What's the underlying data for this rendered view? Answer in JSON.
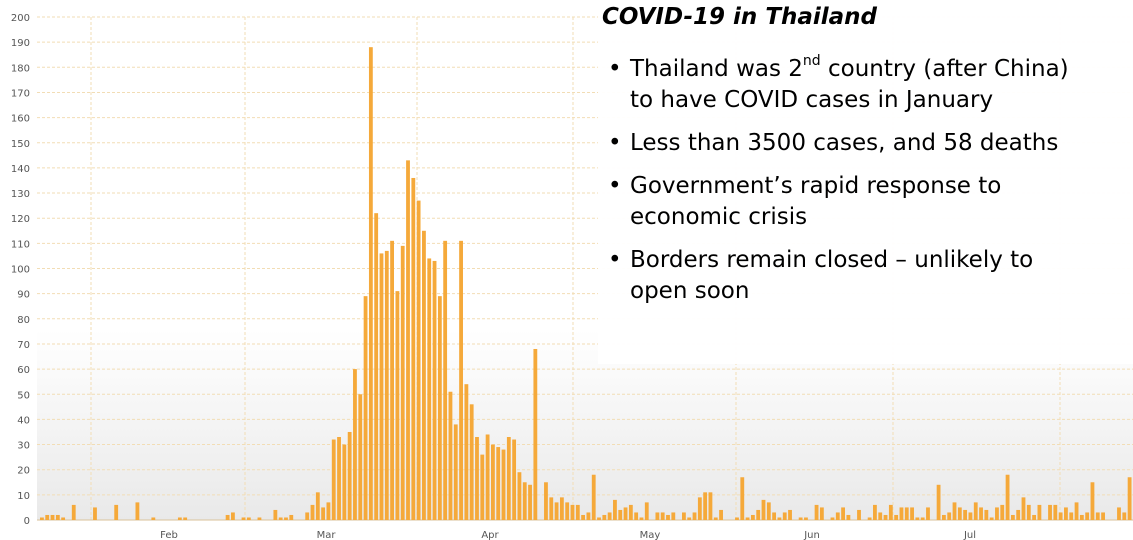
{
  "chart_data": {
    "type": "bar",
    "color": "#F5A93A",
    "grid_color": "#F2DDB5",
    "ylim": [
      0,
      200
    ],
    "yticks": [
      0,
      10,
      20,
      30,
      40,
      50,
      60,
      70,
      80,
      90,
      100,
      110,
      120,
      130,
      140,
      150,
      160,
      170,
      180,
      190,
      200
    ],
    "x_month_labels": [
      "Feb",
      "Mar",
      "Apr",
      "May",
      "Jun",
      "Jul"
    ],
    "values": [
      1,
      2,
      2,
      2,
      1,
      0,
      6,
      0,
      0,
      0,
      5,
      0,
      0,
      0,
      6,
      0,
      0,
      0,
      7,
      0,
      0,
      1,
      0,
      0,
      0,
      0,
      1,
      1,
      0,
      0,
      0,
      0,
      0,
      0,
      0,
      2,
      3,
      0,
      1,
      1,
      0,
      1,
      0,
      0,
      4,
      1,
      1,
      2,
      0,
      0,
      3,
      6,
      11,
      5,
      7,
      32,
      33,
      30,
      35,
      60,
      50,
      89,
      188,
      122,
      106,
      107,
      111,
      91,
      109,
      143,
      136,
      127,
      115,
      104,
      103,
      89,
      111,
      51,
      38,
      111,
      54,
      46,
      33,
      26,
      34,
      30,
      29,
      28,
      33,
      32,
      19,
      15,
      14,
      68,
      0,
      15,
      9,
      7,
      9,
      7,
      6,
      6,
      2,
      3,
      18,
      1,
      2,
      3,
      8,
      4,
      5,
      6,
      3,
      1,
      7,
      0,
      3,
      3,
      2,
      3,
      0,
      3,
      1,
      3,
      9,
      11,
      11,
      1,
      4,
      0,
      0,
      1,
      17,
      1,
      2,
      4,
      8,
      7,
      3,
      1,
      3,
      4,
      0,
      1,
      1,
      0,
      6,
      5,
      0,
      1,
      3,
      5,
      2,
      0,
      4,
      0,
      1,
      6,
      3,
      2,
      6,
      2,
      5,
      5,
      5,
      1,
      1,
      5,
      0,
      14,
      2,
      3,
      7,
      5,
      4,
      3,
      7,
      5,
      4,
      1,
      5,
      6,
      18,
      2,
      4,
      9,
      6,
      2,
      6,
      0,
      6,
      6,
      3,
      5,
      3,
      7,
      2,
      3,
      15,
      3,
      3,
      0,
      0,
      5,
      3,
      17
    ]
  },
  "textbox": {
    "title": "COVID-19 in Thailand",
    "bullets": [
      {
        "pre": "Thailand was 2",
        "sup": "nd",
        "post": " country (after China)"
      },
      {
        "pre": "to have COVID cases in January",
        "sup": "",
        "post": "",
        "continuation": true
      },
      {
        "pre": "Less than 3500 cases, and 58 deaths",
        "sup": "",
        "post": ""
      },
      {
        "pre": "Government’s rapid response to",
        "sup": "",
        "post": ""
      },
      {
        "pre": "economic crisis",
        "sup": "",
        "post": "",
        "continuation": true
      },
      {
        "pre": "Borders remain closed – unlikely to",
        "sup": "",
        "post": ""
      },
      {
        "pre": "open soon",
        "sup": "",
        "post": "",
        "continuation": true
      }
    ]
  }
}
